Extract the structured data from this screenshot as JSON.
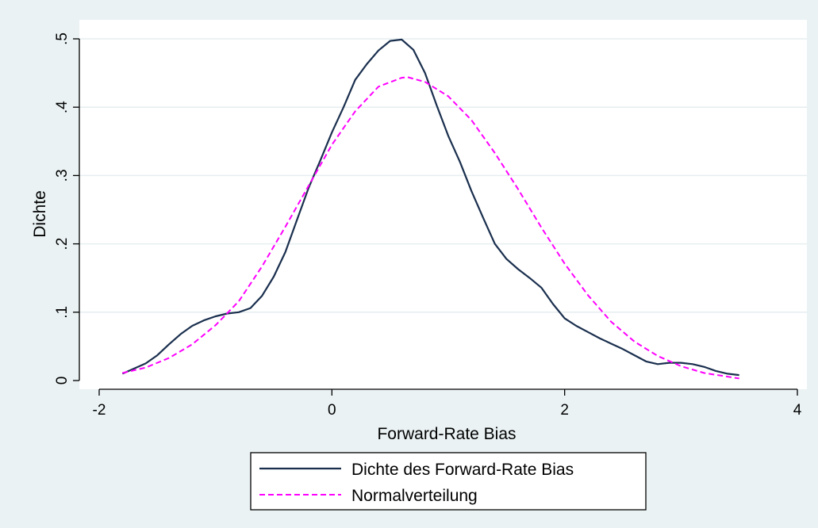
{
  "chart_data": {
    "type": "line",
    "title": "",
    "xlabel": "Forward-Rate Bias",
    "ylabel": "Dichte",
    "xlim": [
      -2,
      4
    ],
    "ylim": [
      0,
      0.5
    ],
    "grid": true,
    "x_ticks": [
      -2,
      0,
      2,
      4
    ],
    "x_tick_labels": [
      "-2",
      "0",
      "2",
      "4"
    ],
    "y_ticks": [
      0,
      0.1,
      0.2,
      0.3,
      0.4,
      0.5
    ],
    "y_tick_labels": [
      "0",
      ".1",
      ".2",
      ".3",
      ".4",
      ".5"
    ],
    "legend_position": "bottom",
    "series": [
      {
        "name": "Dichte des Forward-Rate Bias",
        "style": "solid",
        "color": "#1a2f4e",
        "x": [
          -1.8,
          -1.6,
          -1.5,
          -1.4,
          -1.3,
          -1.2,
          -1.1,
          -1.0,
          -0.9,
          -0.8,
          -0.7,
          -0.6,
          -0.5,
          -0.4,
          -0.3,
          -0.2,
          -0.1,
          0.0,
          0.1,
          0.2,
          0.3,
          0.4,
          0.5,
          0.6,
          0.7,
          0.8,
          0.9,
          1.0,
          1.1,
          1.2,
          1.3,
          1.4,
          1.5,
          1.6,
          1.7,
          1.8,
          1.9,
          2.0,
          2.1,
          2.2,
          2.3,
          2.4,
          2.5,
          2.6,
          2.7,
          2.8,
          2.9,
          3.0,
          3.1,
          3.2,
          3.3,
          3.4,
          3.5
        ],
        "y": [
          0.01,
          0.025,
          0.037,
          0.053,
          0.068,
          0.08,
          0.088,
          0.094,
          0.098,
          0.1,
          0.106,
          0.124,
          0.152,
          0.188,
          0.235,
          0.282,
          0.322,
          0.363,
          0.4,
          0.44,
          0.463,
          0.483,
          0.497,
          0.499,
          0.484,
          0.45,
          0.403,
          0.358,
          0.32,
          0.277,
          0.238,
          0.2,
          0.178,
          0.163,
          0.15,
          0.136,
          0.112,
          0.091,
          0.08,
          0.071,
          0.062,
          0.054,
          0.046,
          0.037,
          0.028,
          0.024,
          0.026,
          0.026,
          0.024,
          0.02,
          0.014,
          0.01,
          0.008
        ]
      },
      {
        "name": "Normalverteilung",
        "style": "dashed",
        "color": "#ff00ff",
        "mean": 0.65,
        "sd": 0.9,
        "x": [
          -1.8,
          -1.6,
          -1.4,
          -1.2,
          -1.0,
          -0.8,
          -0.6,
          -0.4,
          -0.2,
          0.0,
          0.2,
          0.4,
          0.6,
          0.65,
          0.8,
          1.0,
          1.2,
          1.4,
          1.6,
          1.8,
          2.0,
          2.2,
          2.4,
          2.6,
          2.8,
          3.0,
          3.2,
          3.5
        ],
        "y": [
          0.011,
          0.019,
          0.033,
          0.053,
          0.081,
          0.116,
          0.167,
          0.225,
          0.285,
          0.345,
          0.394,
          0.43,
          0.443,
          0.444,
          0.437,
          0.416,
          0.381,
          0.333,
          0.28,
          0.224,
          0.171,
          0.125,
          0.086,
          0.057,
          0.036,
          0.021,
          0.011,
          0.003
        ]
      }
    ]
  },
  "colors": {
    "outer_background": "#eaf2f3",
    "plot_background": "#ffffff",
    "grid": "#e6eef0",
    "axis": "#000000"
  }
}
